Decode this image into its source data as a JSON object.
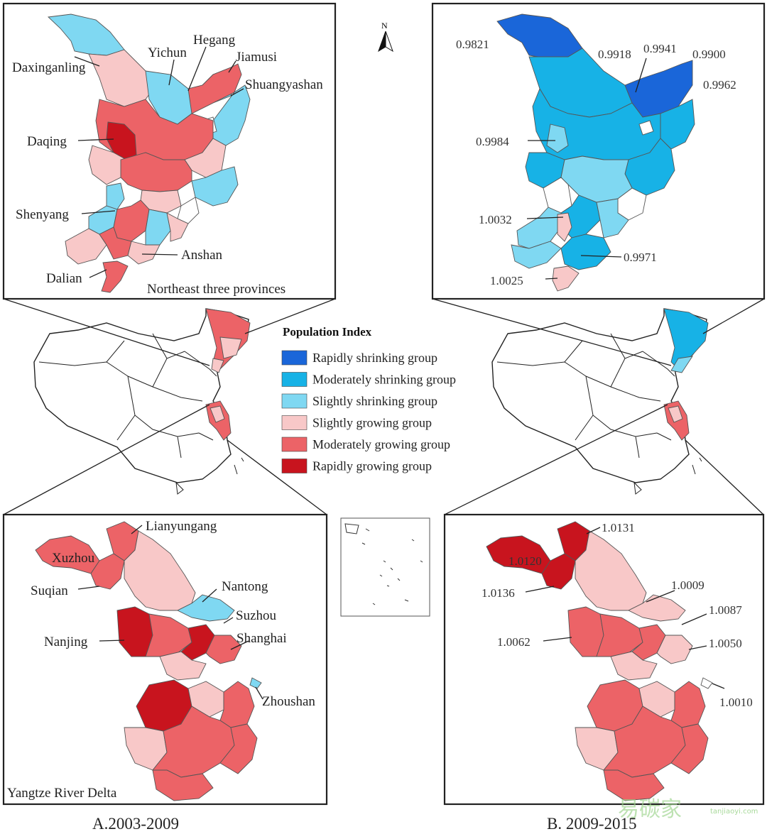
{
  "legend": {
    "title": "Population Index",
    "items": [
      {
        "label": "Rapidly shrinking group",
        "color": "#1a66d9"
      },
      {
        "label": "Moderately shrinking group",
        "color": "#17b2e6"
      },
      {
        "label": "Slightly shrinking group",
        "color": "#7fd8f2"
      },
      {
        "label": "Slightly growing group",
        "color": "#f8c8c8"
      },
      {
        "label": "Moderately growing group",
        "color": "#ec6367"
      },
      {
        "label": "Rapidly growing group",
        "color": "#c8141e"
      }
    ]
  },
  "panel_a": {
    "caption": "A.2003-2009",
    "northeast": {
      "title": "Northeast three provinces",
      "labels": [
        "Daxinganling",
        "Yichun",
        "Hegang",
        "Jiamusi",
        "Shuangyashan",
        "Daqing",
        "Shenyang",
        "Anshan",
        "Dalian"
      ]
    },
    "yrd": {
      "title": "Yangtze River Delta",
      "labels": [
        "Lianyungang",
        "Xuzhou",
        "Suqian",
        "Nantong",
        "Suzhou",
        "Nanjing",
        "Shanghai",
        "Zhoushan"
      ]
    }
  },
  "panel_b": {
    "caption": "B. 2009-2015",
    "northeast": {
      "values": [
        "0.9821",
        "0.9918",
        "0.9941",
        "0.9900",
        "0.9962",
        "0.9984",
        "1.0032",
        "0.9971",
        "1.0025"
      ]
    },
    "yrd": {
      "values": [
        "1.0131",
        "1.0120",
        "1.0136",
        "1.0009",
        "1.0087",
        "1.0062",
        "1.0050",
        "1.0010"
      ]
    }
  },
  "north_arrow": "N",
  "watermark": {
    "brand": "易碳家",
    "url": "tanjiaoyi.com"
  }
}
